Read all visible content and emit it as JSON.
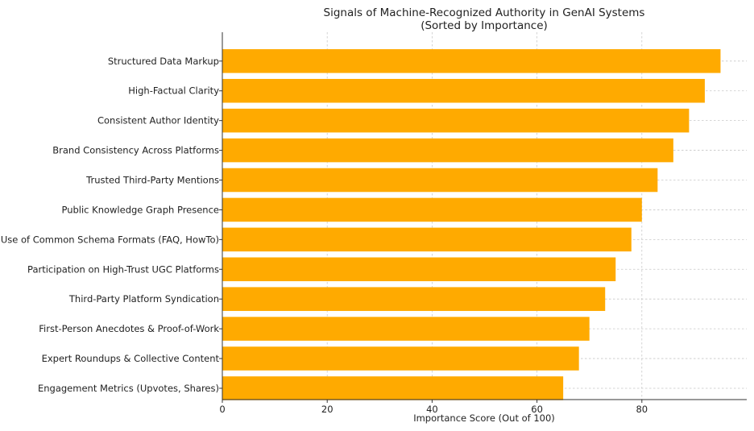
{
  "chart_data": {
    "type": "bar",
    "orientation": "horizontal",
    "title": "Signals of Machine-Recognized Authority in GenAI Systems",
    "subtitle": "(Sorted by Importance)",
    "xlabel": "Importance Score (Out of 100)",
    "ylabel": "",
    "xlim": [
      0,
      100
    ],
    "xticks": [
      0,
      20,
      40,
      60,
      80
    ],
    "grid": true,
    "bar_color": "#FFAA00",
    "categories": [
      "Structured Data Markup",
      "High-Factual Clarity",
      "Consistent Author Identity",
      "Brand Consistency Across Platforms",
      "Trusted Third-Party Mentions",
      "Public Knowledge Graph Presence",
      "Use of Common Schema Formats (FAQ, HowTo)",
      "Participation on High-Trust UGC Platforms",
      "Third-Party Platform Syndication",
      "First-Person Anecdotes & Proof-of-Work",
      "Expert Roundups & Collective Content",
      "Engagement Metrics (Upvotes, Shares)"
    ],
    "values": [
      95,
      92,
      89,
      86,
      83,
      80,
      78,
      75,
      73,
      70,
      68,
      65
    ]
  }
}
